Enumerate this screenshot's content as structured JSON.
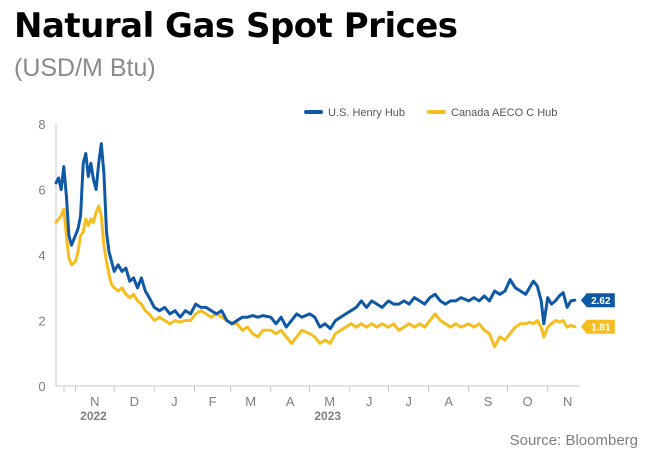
{
  "title": "Natural Gas Spot Prices",
  "subtitle": "(USD/M Btu)",
  "source": "Source: Bloomberg",
  "chart_data": {
    "type": "line",
    "title": "Natural Gas Spot Prices",
    "subtitle": "(USD/M Btu)",
    "ylabel": "",
    "xlabel": "",
    "ylim": [
      0,
      8
    ],
    "yticks": [
      0,
      2,
      4,
      6,
      8
    ],
    "grid": false,
    "legend_position": "top-right",
    "x_ticks": [
      {
        "label": "N",
        "date": "2022-11-01"
      },
      {
        "label": "D",
        "date": "2022-12-01"
      },
      {
        "label": "J",
        "date": "2023-01-01"
      },
      {
        "label": "F",
        "date": "2023-02-01"
      },
      {
        "label": "M",
        "date": "2023-03-01"
      },
      {
        "label": "A",
        "date": "2023-04-01"
      },
      {
        "label": "M",
        "date": "2023-05-01"
      },
      {
        "label": "J",
        "date": "2023-06-01"
      },
      {
        "label": "J",
        "date": "2023-07-01"
      },
      {
        "label": "A",
        "date": "2023-08-01"
      },
      {
        "label": "S",
        "date": "2023-09-01"
      },
      {
        "label": "O",
        "date": "2023-10-01"
      },
      {
        "label": "N",
        "date": "2023-11-01"
      }
    ],
    "year_labels": [
      {
        "label": "2022",
        "date": "2022-11-15"
      },
      {
        "label": "2023",
        "date": "2023-05-15"
      }
    ],
    "x_range": [
      "2022-10-17",
      "2023-11-26"
    ],
    "series": [
      {
        "name": "U.S. Henry Hub",
        "color": "#0e58a6",
        "end_label": "2.62",
        "points": [
          [
            "2022-10-17",
            6.2
          ],
          [
            "2022-10-19",
            6.35
          ],
          [
            "2022-10-21",
            6.0
          ],
          [
            "2022-10-23",
            6.7
          ],
          [
            "2022-10-25",
            5.8
          ],
          [
            "2022-10-27",
            4.6
          ],
          [
            "2022-10-29",
            4.3
          ],
          [
            "2022-11-01",
            4.6
          ],
          [
            "2022-11-03",
            4.8
          ],
          [
            "2022-11-05",
            5.2
          ],
          [
            "2022-11-07",
            6.8
          ],
          [
            "2022-11-09",
            7.1
          ],
          [
            "2022-11-11",
            6.4
          ],
          [
            "2022-11-13",
            6.8
          ],
          [
            "2022-11-15",
            6.3
          ],
          [
            "2022-11-17",
            6.0
          ],
          [
            "2022-11-19",
            6.8
          ],
          [
            "2022-11-21",
            7.4
          ],
          [
            "2022-11-23",
            6.5
          ],
          [
            "2022-11-25",
            4.7
          ],
          [
            "2022-11-27",
            4.1
          ],
          [
            "2022-11-29",
            3.8
          ],
          [
            "2022-12-01",
            3.5
          ],
          [
            "2022-12-04",
            3.7
          ],
          [
            "2022-12-07",
            3.5
          ],
          [
            "2022-12-10",
            3.6
          ],
          [
            "2022-12-13",
            3.2
          ],
          [
            "2022-12-16",
            3.3
          ],
          [
            "2022-12-19",
            3.0
          ],
          [
            "2022-12-22",
            3.3
          ],
          [
            "2022-12-25",
            2.9
          ],
          [
            "2022-12-28",
            2.7
          ],
          [
            "2023-01-01",
            2.4
          ],
          [
            "2023-01-05",
            2.3
          ],
          [
            "2023-01-09",
            2.4
          ],
          [
            "2023-01-13",
            2.2
          ],
          [
            "2023-01-17",
            2.3
          ],
          [
            "2023-01-21",
            2.1
          ],
          [
            "2023-01-25",
            2.3
          ],
          [
            "2023-01-29",
            2.2
          ],
          [
            "2023-02-02",
            2.5
          ],
          [
            "2023-02-06",
            2.4
          ],
          [
            "2023-02-10",
            2.4
          ],
          [
            "2023-02-14",
            2.3
          ],
          [
            "2023-02-18",
            2.2
          ],
          [
            "2023-02-22",
            2.3
          ],
          [
            "2023-02-26",
            2.0
          ],
          [
            "2023-03-02",
            1.9
          ],
          [
            "2023-03-06",
            2.0
          ],
          [
            "2023-03-10",
            2.1
          ],
          [
            "2023-03-14",
            2.1
          ],
          [
            "2023-03-18",
            2.15
          ],
          [
            "2023-03-22",
            2.1
          ],
          [
            "2023-03-26",
            2.15
          ],
          [
            "2023-04-01",
            2.1
          ],
          [
            "2023-04-05",
            1.9
          ],
          [
            "2023-04-09",
            2.1
          ],
          [
            "2023-04-13",
            1.8
          ],
          [
            "2023-04-17",
            2.0
          ],
          [
            "2023-04-21",
            2.2
          ],
          [
            "2023-04-25",
            2.1
          ],
          [
            "2023-05-01",
            2.2
          ],
          [
            "2023-05-05",
            2.1
          ],
          [
            "2023-05-09",
            1.8
          ],
          [
            "2023-05-13",
            1.9
          ],
          [
            "2023-05-17",
            1.75
          ],
          [
            "2023-05-21",
            2.0
          ],
          [
            "2023-05-25",
            2.1
          ],
          [
            "2023-05-29",
            2.2
          ],
          [
            "2023-06-02",
            2.3
          ],
          [
            "2023-06-06",
            2.4
          ],
          [
            "2023-06-10",
            2.6
          ],
          [
            "2023-06-14",
            2.4
          ],
          [
            "2023-06-18",
            2.6
          ],
          [
            "2023-06-22",
            2.5
          ],
          [
            "2023-06-26",
            2.4
          ],
          [
            "2023-07-01",
            2.6
          ],
          [
            "2023-07-05",
            2.5
          ],
          [
            "2023-07-09",
            2.5
          ],
          [
            "2023-07-13",
            2.6
          ],
          [
            "2023-07-17",
            2.5
          ],
          [
            "2023-07-21",
            2.7
          ],
          [
            "2023-07-25",
            2.6
          ],
          [
            "2023-07-29",
            2.5
          ],
          [
            "2023-08-02",
            2.7
          ],
          [
            "2023-08-06",
            2.8
          ],
          [
            "2023-08-10",
            2.6
          ],
          [
            "2023-08-14",
            2.5
          ],
          [
            "2023-08-18",
            2.6
          ],
          [
            "2023-08-22",
            2.6
          ],
          [
            "2023-08-26",
            2.7
          ],
          [
            "2023-09-01",
            2.6
          ],
          [
            "2023-09-05",
            2.7
          ],
          [
            "2023-09-09",
            2.6
          ],
          [
            "2023-09-13",
            2.75
          ],
          [
            "2023-09-17",
            2.6
          ],
          [
            "2023-09-21",
            2.9
          ],
          [
            "2023-09-25",
            2.8
          ],
          [
            "2023-09-29",
            2.9
          ],
          [
            "2023-10-03",
            3.25
          ],
          [
            "2023-10-07",
            3.0
          ],
          [
            "2023-10-11",
            2.9
          ],
          [
            "2023-10-15",
            2.8
          ],
          [
            "2023-10-18",
            3.0
          ],
          [
            "2023-10-21",
            3.2
          ],
          [
            "2023-10-24",
            3.05
          ],
          [
            "2023-10-27",
            2.6
          ],
          [
            "2023-10-29",
            1.9
          ],
          [
            "2023-11-01",
            2.7
          ],
          [
            "2023-11-04",
            2.5
          ],
          [
            "2023-11-07",
            2.6
          ],
          [
            "2023-11-10",
            2.75
          ],
          [
            "2023-11-13",
            2.85
          ],
          [
            "2023-11-16",
            2.4
          ],
          [
            "2023-11-19",
            2.6
          ],
          [
            "2023-11-22",
            2.62
          ]
        ]
      },
      {
        "name": "Canada AECO C Hub",
        "color": "#f5be1e",
        "end_label": "1.81",
        "points": [
          [
            "2022-10-17",
            5.0
          ],
          [
            "2022-10-19",
            5.1
          ],
          [
            "2022-10-21",
            5.2
          ],
          [
            "2022-10-23",
            5.4
          ],
          [
            "2022-10-25",
            4.6
          ],
          [
            "2022-10-27",
            3.9
          ],
          [
            "2022-10-29",
            3.7
          ],
          [
            "2022-11-01",
            3.8
          ],
          [
            "2022-11-03",
            4.1
          ],
          [
            "2022-11-05",
            4.6
          ],
          [
            "2022-11-07",
            4.7
          ],
          [
            "2022-11-09",
            5.1
          ],
          [
            "2022-11-11",
            4.9
          ],
          [
            "2022-11-13",
            5.1
          ],
          [
            "2022-11-15",
            5.0
          ],
          [
            "2022-11-17",
            5.3
          ],
          [
            "2022-11-19",
            5.5
          ],
          [
            "2022-11-21",
            5.2
          ],
          [
            "2022-11-23",
            4.3
          ],
          [
            "2022-11-25",
            3.8
          ],
          [
            "2022-11-27",
            3.4
          ],
          [
            "2022-11-29",
            3.1
          ],
          [
            "2022-12-01",
            3.0
          ],
          [
            "2022-12-04",
            2.9
          ],
          [
            "2022-12-07",
            3.0
          ],
          [
            "2022-12-10",
            2.8
          ],
          [
            "2022-12-13",
            2.7
          ],
          [
            "2022-12-16",
            2.8
          ],
          [
            "2022-12-19",
            2.6
          ],
          [
            "2022-12-22",
            2.5
          ],
          [
            "2022-12-25",
            2.3
          ],
          [
            "2022-12-28",
            2.2
          ],
          [
            "2023-01-01",
            2.0
          ],
          [
            "2023-01-05",
            2.1
          ],
          [
            "2023-01-09",
            2.0
          ],
          [
            "2023-01-13",
            1.9
          ],
          [
            "2023-01-17",
            2.0
          ],
          [
            "2023-01-21",
            1.95
          ],
          [
            "2023-01-25",
            2.0
          ],
          [
            "2023-01-29",
            2.0
          ],
          [
            "2023-02-02",
            2.2
          ],
          [
            "2023-02-06",
            2.3
          ],
          [
            "2023-02-10",
            2.2
          ],
          [
            "2023-02-14",
            2.1
          ],
          [
            "2023-02-18",
            2.2
          ],
          [
            "2023-02-22",
            2.1
          ],
          [
            "2023-02-26",
            2.0
          ],
          [
            "2023-03-02",
            1.9
          ],
          [
            "2023-03-06",
            1.9
          ],
          [
            "2023-03-10",
            1.7
          ],
          [
            "2023-03-14",
            1.8
          ],
          [
            "2023-03-18",
            1.6
          ],
          [
            "2023-03-22",
            1.5
          ],
          [
            "2023-03-26",
            1.7
          ],
          [
            "2023-04-01",
            1.7
          ],
          [
            "2023-04-05",
            1.6
          ],
          [
            "2023-04-09",
            1.7
          ],
          [
            "2023-04-13",
            1.5
          ],
          [
            "2023-04-17",
            1.3
          ],
          [
            "2023-04-21",
            1.5
          ],
          [
            "2023-04-25",
            1.7
          ],
          [
            "2023-05-01",
            1.6
          ],
          [
            "2023-05-05",
            1.5
          ],
          [
            "2023-05-09",
            1.3
          ],
          [
            "2023-05-13",
            1.4
          ],
          [
            "2023-05-17",
            1.3
          ],
          [
            "2023-05-21",
            1.6
          ],
          [
            "2023-05-25",
            1.7
          ],
          [
            "2023-05-29",
            1.8
          ],
          [
            "2023-06-02",
            1.9
          ],
          [
            "2023-06-06",
            1.8
          ],
          [
            "2023-06-10",
            1.9
          ],
          [
            "2023-06-14",
            1.8
          ],
          [
            "2023-06-18",
            1.9
          ],
          [
            "2023-06-22",
            1.8
          ],
          [
            "2023-06-26",
            1.9
          ],
          [
            "2023-07-01",
            1.8
          ],
          [
            "2023-07-05",
            1.9
          ],
          [
            "2023-07-09",
            1.7
          ],
          [
            "2023-07-13",
            1.8
          ],
          [
            "2023-07-17",
            1.9
          ],
          [
            "2023-07-21",
            1.8
          ],
          [
            "2023-07-25",
            1.9
          ],
          [
            "2023-07-29",
            1.8
          ],
          [
            "2023-08-02",
            2.0
          ],
          [
            "2023-08-06",
            2.2
          ],
          [
            "2023-08-10",
            2.0
          ],
          [
            "2023-08-14",
            1.9
          ],
          [
            "2023-08-18",
            1.8
          ],
          [
            "2023-08-22",
            1.9
          ],
          [
            "2023-08-26",
            1.8
          ],
          [
            "2023-09-01",
            1.9
          ],
          [
            "2023-09-05",
            1.8
          ],
          [
            "2023-09-09",
            1.9
          ],
          [
            "2023-09-13",
            1.7
          ],
          [
            "2023-09-17",
            1.6
          ],
          [
            "2023-09-21",
            1.2
          ],
          [
            "2023-09-25",
            1.5
          ],
          [
            "2023-09-29",
            1.4
          ],
          [
            "2023-10-03",
            1.6
          ],
          [
            "2023-10-07",
            1.8
          ],
          [
            "2023-10-11",
            1.9
          ],
          [
            "2023-10-15",
            1.9
          ],
          [
            "2023-10-18",
            1.95
          ],
          [
            "2023-10-21",
            1.9
          ],
          [
            "2023-10-24",
            2.0
          ],
          [
            "2023-10-27",
            1.8
          ],
          [
            "2023-10-29",
            1.5
          ],
          [
            "2023-11-01",
            1.8
          ],
          [
            "2023-11-04",
            1.9
          ],
          [
            "2023-11-07",
            2.0
          ],
          [
            "2023-11-10",
            1.95
          ],
          [
            "2023-11-13",
            2.0
          ],
          [
            "2023-11-16",
            1.8
          ],
          [
            "2023-11-19",
            1.85
          ],
          [
            "2023-11-22",
            1.81
          ]
        ]
      }
    ]
  }
}
